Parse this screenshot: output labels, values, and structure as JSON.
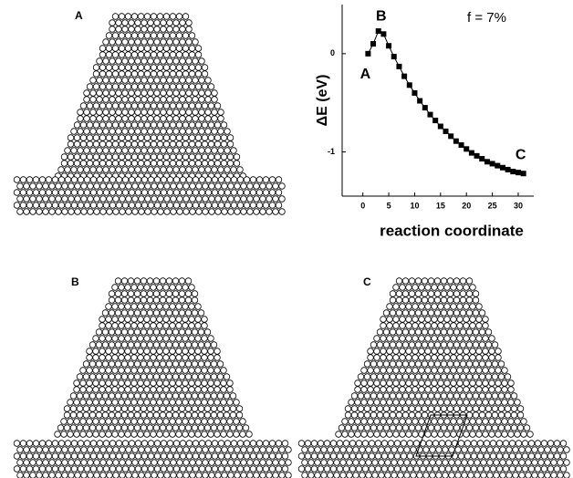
{
  "panels": [
    {
      "label": "A"
    },
    {
      "label": "B"
    },
    {
      "label": "C"
    }
  ],
  "chart_data": {
    "type": "line",
    "annotation": "f = 7%",
    "point_labels": [
      "A",
      "B",
      "C"
    ],
    "x_label": "reaction coordinate",
    "y_label": "ΔE (eV)",
    "x": [
      1,
      2,
      3,
      4,
      5,
      6,
      7,
      8,
      9,
      10,
      11,
      12,
      13,
      14,
      15,
      16,
      17,
      18,
      19,
      20,
      21,
      22,
      23,
      24,
      25,
      26,
      27,
      28,
      29,
      30,
      31
    ],
    "series": [
      {
        "color": "#000000",
        "values": [
          0,
          0.1,
          0.23,
          0.2,
          0.08,
          -0.03,
          -0.13,
          -0.23,
          -0.32,
          -0.4,
          -0.48,
          -0.55,
          -0.62,
          -0.68,
          -0.74,
          -0.79,
          -0.84,
          -0.89,
          -0.93,
          -0.97,
          -1.01,
          -1.04,
          -1.07,
          -1.1,
          -1.12,
          -1.14,
          -1.16,
          -1.18,
          -1.2,
          -1.21,
          -1.22
        ]
      }
    ],
    "xlim": [
      -4,
      33
    ],
    "xticks": [
      0,
      5,
      10,
      15,
      20,
      25,
      30
    ],
    "ylim": [
      -1.45,
      0.5
    ],
    "yticks": [
      -1,
      0
    ]
  }
}
